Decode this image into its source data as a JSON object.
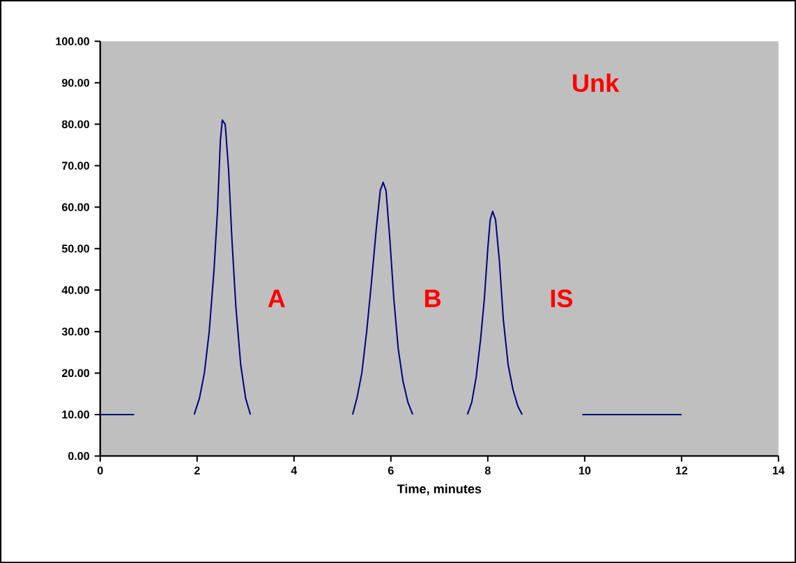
{
  "chart_data": {
    "type": "line",
    "xlabel": "Time, minutes",
    "x": [
      0,
      0.7,
      null,
      1.94,
      2.05,
      2.15,
      2.25,
      2.35,
      2.42,
      2.48,
      2.52,
      2.58,
      2.65,
      2.72,
      2.8,
      2.9,
      3.0,
      3.1,
      null,
      5.21,
      5.3,
      5.4,
      5.5,
      5.6,
      5.7,
      5.78,
      5.84,
      5.9,
      5.98,
      6.06,
      6.15,
      6.25,
      6.35,
      6.45,
      null,
      7.58,
      7.67,
      7.76,
      7.85,
      7.93,
      8.0,
      8.05,
      8.1,
      8.16,
      8.24,
      8.32,
      8.42,
      8.52,
      8.62,
      8.71,
      null,
      9.95,
      12
    ],
    "series": [
      {
        "color": "#000080",
        "values": [
          10,
          10,
          null,
          10,
          14,
          20,
          30,
          45,
          59,
          76,
          81,
          80,
          69,
          52,
          36,
          22,
          14,
          10,
          null,
          10,
          14,
          20,
          30,
          42,
          55,
          64,
          66,
          64,
          52,
          38,
          26,
          18,
          13,
          10,
          null,
          10,
          13,
          19,
          28,
          38,
          50,
          57,
          59,
          57,
          47,
          33,
          22,
          16,
          12,
          10,
          null,
          10,
          10
        ]
      }
    ],
    "xlim": [
      0,
      14
    ],
    "xticks": [
      0,
      2,
      4,
      6,
      8,
      10,
      12,
      14
    ],
    "ylim": [
      0,
      100
    ],
    "yticks": [
      {
        "value": 0,
        "label": "0.00"
      },
      {
        "value": 10,
        "label": "10.00"
      },
      {
        "value": 20,
        "label": "20.00"
      },
      {
        "value": 30,
        "label": "30.00"
      },
      {
        "value": 40,
        "label": "40.00"
      },
      {
        "value": 50,
        "label": "50.00"
      },
      {
        "value": 60,
        "label": "60.00"
      },
      {
        "value": 70,
        "label": "70.00"
      },
      {
        "value": 80,
        "label": "80.00"
      },
      {
        "value": 90,
        "label": "90.00"
      },
      {
        "value": 100,
        "label": "100.00"
      }
    ],
    "annotations": [
      "Unk",
      "A",
      "B",
      "IS"
    ],
    "marker": "none",
    "line_style": "solid"
  }
}
